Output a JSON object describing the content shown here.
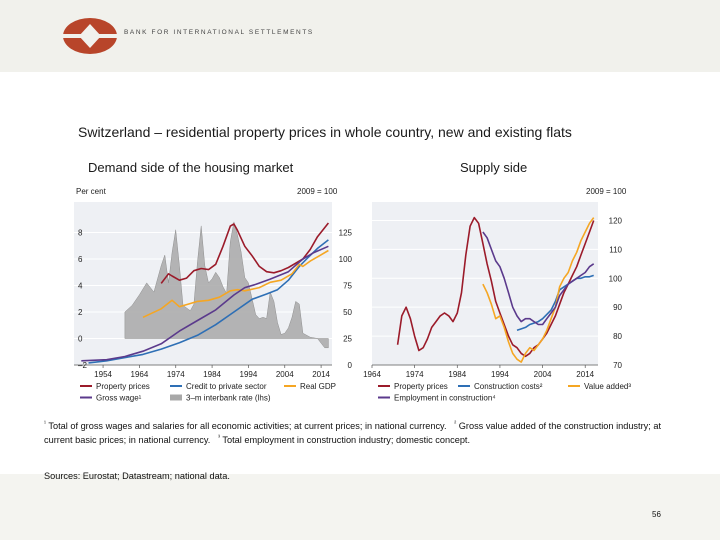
{
  "header": {
    "org_name": "BANK FOR INTERNATIONAL SETTLEMENTS",
    "brand_color": "#b8452a"
  },
  "title": "Switzerland – residential property prices in whole country, new and existing flats",
  "panels": {
    "left": {
      "title": "Demand side of the housing market",
      "left_axis_label": "Per cent",
      "right_axis_label": "2009 = 100"
    },
    "right": {
      "title": "Supply side",
      "right_axis_label": "2009 = 100"
    }
  },
  "chart_data": [
    {
      "type": "line",
      "title": "Demand side of the housing market",
      "x_ticks": [
        "1954",
        "1964",
        "1974",
        "1984",
        "1994",
        "2004",
        "2014"
      ],
      "xlim": [
        1946,
        2017
      ],
      "left_axis": {
        "label": "Per cent",
        "ticks": [
          "8",
          "6",
          "4",
          "2",
          "0",
          "–2"
        ],
        "ylim": [
          -2,
          10
        ]
      },
      "right_axis": {
        "label": "2009 = 100",
        "ticks": [
          "125",
          "100",
          "75",
          "50",
          "25",
          "0"
        ],
        "ylim": [
          0,
          150
        ]
      },
      "series": [
        {
          "name": "Property prices",
          "axis": "right",
          "color": "#9b1b2a",
          "x": [
            1970,
            1972,
            1973,
            1975,
            1977,
            1979,
            1981,
            1983,
            1985,
            1987,
            1989,
            1990,
            1991,
            1993,
            1995,
            1997,
            1999,
            2001,
            2003,
            2005,
            2007,
            2009,
            2011,
            2013,
            2016
          ],
          "y": [
            77,
            86,
            84,
            80,
            82,
            89,
            91,
            90,
            95,
            112,
            131,
            133,
            127,
            112,
            103,
            93,
            88,
            87,
            89,
            92,
            96,
            100,
            109,
            121,
            134
          ]
        },
        {
          "name": "Credit to private sector",
          "axis": "right",
          "color": "#2e6fb5",
          "x": [
            1950,
            1955,
            1960,
            1965,
            1970,
            1975,
            1980,
            1985,
            1990,
            1995,
            1999,
            2002,
            2005,
            2008,
            2010,
            2013,
            2016
          ],
          "y": [
            2,
            4,
            7,
            10,
            15,
            21,
            28,
            38,
            50,
            62,
            67,
            71,
            80,
            93,
            100,
            110,
            118
          ]
        },
        {
          "name": "Real GDP",
          "axis": "right",
          "color": "#f5a623",
          "x": [
            1965,
            1970,
            1973,
            1975,
            1977,
            1980,
            1983,
            1986,
            1989,
            1991,
            1993,
            1997,
            2000,
            2003,
            2006,
            2008,
            2009,
            2011,
            2014,
            2016
          ],
          "y": [
            45,
            53,
            61,
            55,
            57,
            60,
            61,
            64,
            70,
            71,
            70,
            73,
            78,
            80,
            86,
            95,
            93,
            98,
            104,
            108
          ]
        },
        {
          "name": "Gross wage¹",
          "axis": "right",
          "color": "#5b3a8c",
          "x": [
            1948,
            1955,
            1960,
            1965,
            1970,
            1975,
            1980,
            1985,
            1990,
            1993,
            1996,
            2000,
            2005,
            2009,
            2012,
            2016
          ],
          "y": [
            4,
            5,
            8,
            13,
            20,
            32,
            42,
            52,
            66,
            73,
            76,
            81,
            88,
            100,
            106,
            112
          ]
        },
        {
          "name": "3-m interbank rate (lhs)",
          "axis": "left",
          "type": "area",
          "color": "#a8a8a8",
          "x": [
            1960,
            1962,
            1964,
            1966,
            1968,
            1970,
            1971,
            1972,
            1973,
            1974,
            1975,
            1976,
            1977,
            1978,
            1979,
            1980,
            1981,
            1982,
            1983,
            1984,
            1985,
            1986,
            1987,
            1988,
            1989,
            1990,
            1991,
            1992,
            1993,
            1994,
            1995,
            1996,
            1997,
            1998,
            1999,
            2000,
            2001,
            2002,
            2003,
            2004,
            2005,
            2006,
            2007,
            2008,
            2009,
            2011,
            2013,
            2015,
            2016
          ],
          "y": [
            2,
            2.5,
            3.3,
            4.2,
            3.5,
            5.5,
            6.3,
            4.2,
            6.5,
            8.2,
            5.5,
            2.5,
            2.3,
            2.1,
            2.6,
            5.8,
            8.5,
            5.5,
            4.2,
            4.5,
            5.0,
            4.6,
            3.9,
            3.4,
            7.3,
            8.8,
            7.8,
            6.5,
            4.6,
            4.2,
            3.0,
            1.8,
            1.5,
            1.6,
            1.5,
            3.5,
            2.8,
            1.2,
            0.3,
            0.4,
            0.8,
            1.6,
            2.8,
            2.6,
            0.4,
            0.1,
            0.0,
            -0.7,
            -0.7
          ]
        }
      ],
      "legend": [
        {
          "label": "Property prices",
          "color": "#9b1b2a",
          "kind": "line"
        },
        {
          "label": "Credit to private sector",
          "color": "#2e6fb5",
          "kind": "line"
        },
        {
          "label": "Real GDP",
          "color": "#f5a623",
          "kind": "line"
        },
        {
          "label": "Gross wage¹",
          "color": "#5b3a8c",
          "kind": "line"
        },
        {
          "label": "3–m interbank rate (lhs)",
          "color": "#a8a8a8",
          "kind": "area"
        }
      ]
    },
    {
      "type": "line",
      "title": "Supply side",
      "x_ticks": [
        "1964",
        "1974",
        "1984",
        "1994",
        "2004",
        "2014"
      ],
      "xlim": [
        1964,
        2017
      ],
      "right_axis": {
        "label": "2009 = 100",
        "ticks": [
          "120",
          "110",
          "100",
          "90",
          "80",
          "70"
        ],
        "ylim": [
          70,
          125
        ]
      },
      "series": [
        {
          "name": "Property prices",
          "color": "#9b1b2a",
          "x": [
            1970,
            1971,
            1972,
            1973,
            1974,
            1975,
            1976,
            1977,
            1978,
            1979,
            1980,
            1981,
            1982,
            1983,
            1984,
            1985,
            1986,
            1987,
            1988,
            1989,
            1990,
            1991,
            1992,
            1993,
            1994,
            1995,
            1996,
            1997,
            1998,
            1999,
            2000,
            2001,
            2002,
            2003,
            2004,
            2005,
            2006,
            2007,
            2008,
            2009,
            2010,
            2011,
            2012,
            2013,
            2014,
            2015,
            2016
          ],
          "y": [
            77,
            87,
            90,
            86,
            80,
            75,
            76,
            79,
            83,
            85,
            87,
            88,
            87,
            85,
            88,
            95,
            108,
            118,
            121,
            119,
            112,
            105,
            99,
            92,
            88,
            84,
            80,
            77,
            76,
            74,
            73,
            74,
            76,
            77,
            79,
            81,
            84,
            87,
            91,
            95,
            98,
            101,
            104,
            108,
            112,
            116,
            120
          ]
        },
        {
          "name": "Construction costs²",
          "color": "#2e6fb5",
          "x": [
            1998,
            1999,
            2000,
            2001,
            2002,
            2003,
            2004,
            2005,
            2006,
            2007,
            2008,
            2009,
            2010,
            2011,
            2012,
            2013,
            2014,
            2015,
            2016
          ],
          "y": [
            82,
            82.5,
            83,
            84,
            84.5,
            85,
            86,
            87.5,
            89,
            92,
            96,
            97,
            98,
            99,
            100,
            100,
            100.5,
            100.5,
            101
          ]
        },
        {
          "name": "Value added³",
          "color": "#f5a623",
          "x": [
            1990,
            1991,
            1992,
            1993,
            1994,
            1995,
            1996,
            1997,
            1998,
            1999,
            2000,
            2001,
            2002,
            2003,
            2004,
            2005,
            2006,
            2007,
            2008,
            2009,
            2010,
            2011,
            2012,
            2013,
            2014,
            2015,
            2016
          ],
          "y": [
            98,
            95,
            91,
            86,
            87,
            83,
            78,
            74,
            72,
            71,
            74,
            76,
            75,
            77,
            79,
            82,
            86,
            90,
            97,
            100,
            102,
            106,
            109,
            113,
            116,
            119,
            121
          ]
        },
        {
          "name": "Employment in construction⁴",
          "color": "#5b3a8c",
          "x": [
            1990,
            1991,
            1992,
            1993,
            1994,
            1995,
            1996,
            1997,
            1998,
            1999,
            2000,
            2001,
            2002,
            2003,
            2004,
            2005,
            2006,
            2007,
            2008,
            2009,
            2010,
            2011,
            2012,
            2013,
            2014,
            2015,
            2016
          ],
          "y": [
            116,
            114,
            110,
            106,
            104,
            100,
            95,
            90,
            87,
            85,
            86,
            86,
            85,
            84,
            84,
            86,
            88,
            90,
            94,
            96,
            98,
            99,
            100,
            101,
            102,
            104,
            105
          ]
        }
      ],
      "legend": [
        {
          "label": "Property prices",
          "color": "#9b1b2a",
          "kind": "line"
        },
        {
          "label": "Construction costs²",
          "color": "#2e6fb5",
          "kind": "line"
        },
        {
          "label": "Value added³",
          "color": "#f5a623",
          "kind": "line"
        },
        {
          "label": "Employment in construction⁴",
          "color": "#5b3a8c",
          "kind": "line"
        }
      ]
    }
  ],
  "footnotes": {
    "n1_mark": "¹",
    "n1": "Total of gross wages and salaries for all economic activities; at current prices; in national currency.",
    "n2_mark": "²",
    "n2": "Gross value added of the construction industry; at current basic prices; in national currency.",
    "n3_mark": "³",
    "n3": "Total employment in construction industry; domestic concept."
  },
  "sources": "Sources: Eurostat; Datastream; national data.",
  "page_number": "56"
}
